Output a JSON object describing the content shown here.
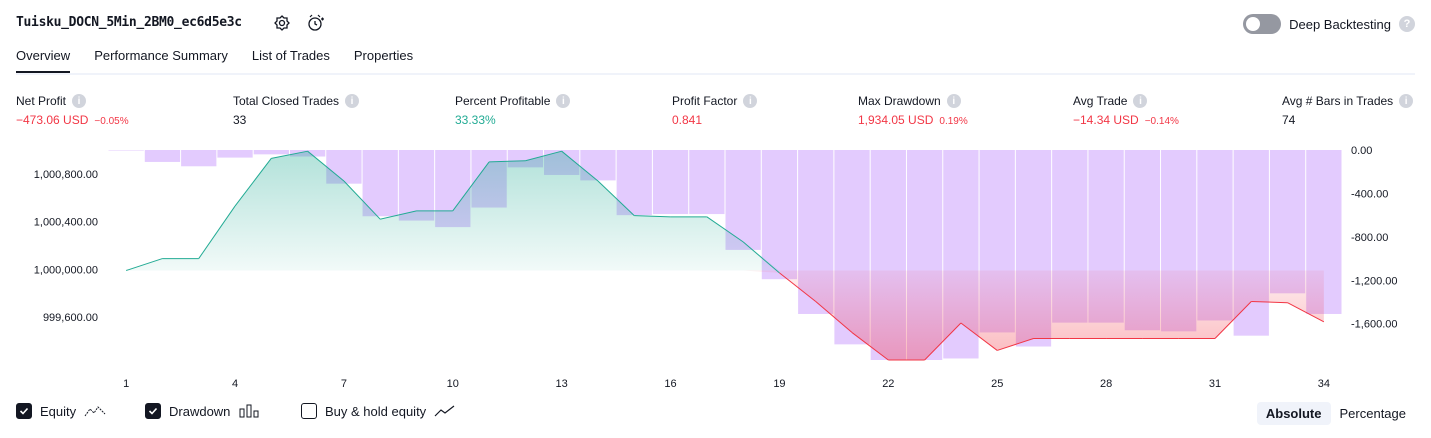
{
  "header": {
    "title": "Tuisku_DOCN_5Min_2BM0_ec6d5e3c",
    "deep_backtesting_label": "Deep Backtesting",
    "help_glyph": "?"
  },
  "tabs": [
    {
      "label": "Overview",
      "active": true
    },
    {
      "label": "Performance Summary",
      "active": false
    },
    {
      "label": "List of Trades",
      "active": false
    },
    {
      "label": "Properties",
      "active": false
    }
  ],
  "metrics": [
    {
      "label": "Net Profit",
      "value": "−473.06 USD",
      "pct": "−0.05%",
      "color": "red"
    },
    {
      "label": "Total Closed Trades",
      "value": "33",
      "pct": "",
      "color": "dark"
    },
    {
      "label": "Percent Profitable",
      "value": "33.33%",
      "pct": "",
      "color": "green"
    },
    {
      "label": "Profit Factor",
      "value": "0.841",
      "pct": "",
      "color": "red"
    },
    {
      "label": "Max Drawdown",
      "value": "1,934.05 USD",
      "pct": "0.19%",
      "color": "red"
    },
    {
      "label": "Avg Trade",
      "value": "−14.34 USD",
      "pct": "−0.14%",
      "color": "red"
    },
    {
      "label": "Avg # Bars in Trades",
      "value": "74",
      "pct": "",
      "color": "dark"
    }
  ],
  "chart_data": {
    "type": "line",
    "x": [
      1,
      2,
      3,
      4,
      5,
      6,
      7,
      8,
      9,
      10,
      11,
      12,
      13,
      14,
      15,
      16,
      17,
      18,
      19,
      20,
      21,
      22,
      23,
      24,
      25,
      26,
      27,
      28,
      29,
      30,
      31,
      32,
      33,
      34
    ],
    "x_tick_labels": [
      "1",
      "4",
      "7",
      "10",
      "13",
      "16",
      "19",
      "22",
      "25",
      "28",
      "31",
      "34"
    ],
    "left_axis": {
      "ticks": [
        "1,000,800.00",
        "1,000,400.00",
        "1,000,000.00",
        "999,600.00"
      ],
      "range": [
        999240,
        1001000
      ]
    },
    "right_axis": {
      "ticks": [
        "0.00",
        "-400.00",
        "-800.00",
        "-1,200.00",
        "-1,600.00"
      ],
      "range": [
        -1934,
        0
      ]
    },
    "series": [
      {
        "name": "Equity",
        "values": [
          999990,
          1000090,
          1000090,
          1000530,
          1000930,
          1000990,
          1000740,
          1000420,
          1000490,
          1000490,
          1000900,
          1000910,
          1000990,
          1000740,
          1000450,
          1000440,
          1000440,
          1000230,
          999970,
          999730,
          999470,
          999240,
          999240,
          999550,
          999320,
          999420,
          999420,
          999420,
          999420,
          999420,
          999420,
          999730,
          999720,
          999560
        ]
      },
      {
        "name": "Drawdown",
        "values": [
          0,
          -110,
          -150,
          -70,
          -40,
          -60,
          -310,
          -610,
          -650,
          -710,
          -530,
          -160,
          -230,
          -280,
          -600,
          -590,
          -590,
          -920,
          -1190,
          -1510,
          -1790,
          -1934,
          -1934,
          -1920,
          -1680,
          -1810,
          -1590,
          -1590,
          -1660,
          -1670,
          -1570,
          -1710,
          -1320,
          -1510
        ]
      }
    ],
    "legend": [
      {
        "label": "Equity",
        "checked": true
      },
      {
        "label": "Drawdown",
        "checked": true
      },
      {
        "label": "Buy & hold equity",
        "checked": false
      }
    ],
    "colors": {
      "equity_up": "#22ab94",
      "equity_down": "#f23645",
      "drawdown": "#e1c8fe",
      "loss_fill": "#f7a1b1"
    }
  },
  "view_toggle": {
    "absolute": "Absolute",
    "percentage": "Percentage",
    "selected": "Absolute"
  }
}
